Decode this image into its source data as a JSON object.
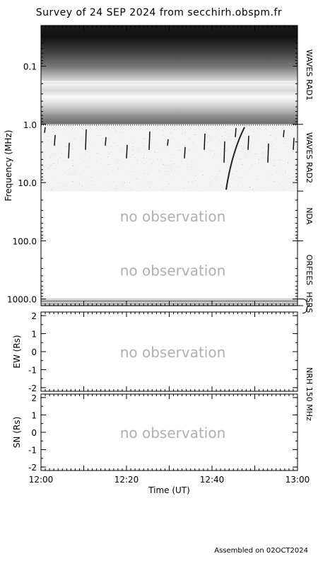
{
  "title": "Survey of 24 SEP 2024 from secchirh.obspm.fr",
  "footer": "Assembled on 02OCT2024",
  "no_observation_text": "no observation",
  "chart_data": [
    {
      "type": "heatmap",
      "ylabel": "Frequency (MHz)",
      "y_scale": "log",
      "y_inverted": true,
      "ylim": [
        0.02,
        1300
      ],
      "y_ticks": [
        {
          "value": 0.1,
          "label": "0.1"
        },
        {
          "value": 1.0,
          "label": "1.0"
        },
        {
          "value": 10.0,
          "label": "10.0"
        },
        {
          "value": 100.0,
          "label": "100.0"
        },
        {
          "value": 1000.0,
          "label": "1000.0"
        }
      ],
      "instruments": [
        {
          "name": "WAVES RAD1",
          "range": [
            0.02,
            1.0
          ],
          "observed": true
        },
        {
          "name": "WAVES RAD2",
          "range": [
            1.0,
            14.0
          ],
          "observed": true
        },
        {
          "name": "NDA",
          "range": [
            14.0,
            100.0
          ],
          "observed": false
        },
        {
          "name": "ORFEES",
          "range": [
            100.0,
            1000.0
          ],
          "observed": false
        },
        {
          "name": "HSRS",
          "range": [
            1000.0,
            1300.0
          ],
          "observed": true
        }
      ]
    },
    {
      "type": "scatter",
      "ylabel": "EW (Rs)",
      "ylim": [
        -2.2,
        2.2
      ],
      "y_ticks": [
        {
          "value": 2,
          "label": "2"
        },
        {
          "value": 1,
          "label": "1"
        },
        {
          "value": 0,
          "label": "0"
        },
        {
          "value": -1,
          "label": "-1"
        },
        {
          "value": -2,
          "label": "-2"
        }
      ],
      "observed": false
    },
    {
      "type": "scatter",
      "ylabel": "SN (Rs)",
      "ylim": [
        -2.2,
        2.2
      ],
      "y_ticks": [
        {
          "value": 2,
          "label": "2"
        },
        {
          "value": 1,
          "label": "1"
        },
        {
          "value": 0,
          "label": "0"
        },
        {
          "value": -1,
          "label": "-1"
        },
        {
          "value": -2,
          "label": "-2"
        }
      ],
      "observed": false
    }
  ],
  "nrh_label": "NRH 150 MHz",
  "x_axis": {
    "label": "Time (UT)",
    "ticks": [
      {
        "value": "12:00",
        "label": "12:00"
      },
      {
        "value": "12:20",
        "label": "12:20"
      },
      {
        "value": "12:40",
        "label": "12:40"
      },
      {
        "value": "13:00",
        "label": "13:00"
      }
    ]
  }
}
